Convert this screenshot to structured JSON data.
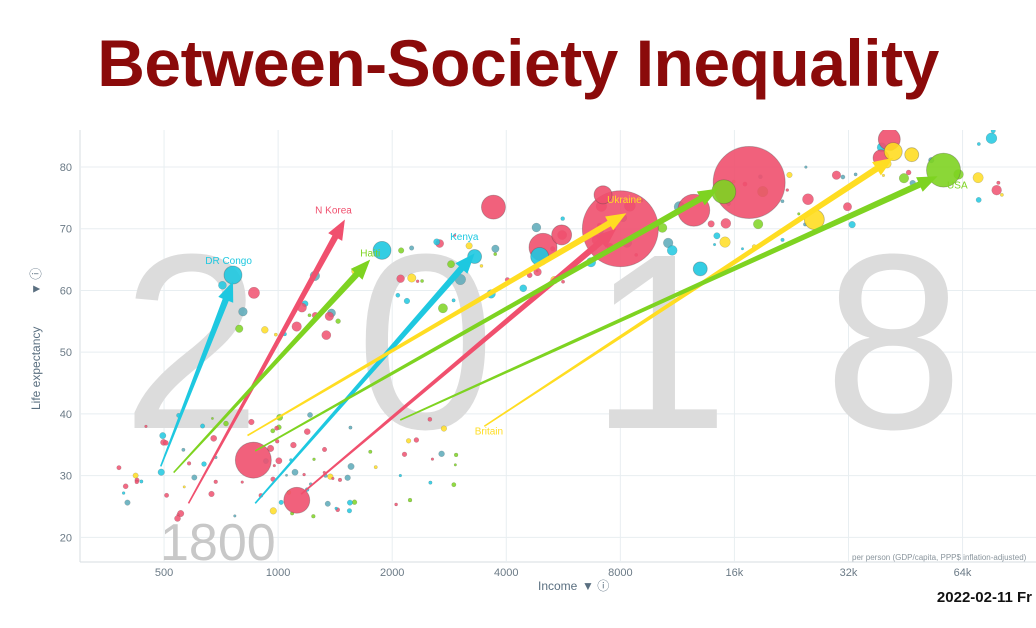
{
  "slide": {
    "title": "Between-Society Inequality",
    "date_text": "2022-02-11 Fr"
  },
  "chart_data": {
    "type": "scatter",
    "xlabel": "Income",
    "ylabel": "Life expectancy",
    "x_scale": "log",
    "x_ticks": [
      500,
      1000,
      2000,
      4000,
      8000,
      16000,
      32000,
      64000
    ],
    "x_tick_labels": [
      "500",
      "1000",
      "2000",
      "4000",
      "8000",
      "16k",
      "32k",
      "64k"
    ],
    "xlim": [
      300,
      100000
    ],
    "y_ticks": [
      20,
      30,
      40,
      50,
      60,
      70,
      80
    ],
    "ylim": [
      16,
      86
    ],
    "grid": true,
    "big_year": "2018",
    "start_year": "1800",
    "caption": "per person (GDP/capita, PPP$ inflation-adjusted)",
    "arrow_colors": {
      "pink": "#f0506e",
      "cyan": "#1ec8e0",
      "green": "#7ed321",
      "yellow": "#ffdd22"
    },
    "arrows": [
      {
        "color": "cyan",
        "from": [
          490,
          31.5
        ],
        "to": [
          760,
          61.5
        ]
      },
      {
        "color": "pink",
        "from": [
          580,
          25.5
        ],
        "to": [
          1500,
          71.5
        ]
      },
      {
        "color": "green",
        "from": [
          530,
          30.5
        ],
        "to": [
          1750,
          65
        ]
      },
      {
        "color": "cyan",
        "from": [
          870,
          25.5
        ],
        "to": [
          3300,
          66
        ]
      },
      {
        "color": "pink",
        "from": [
          1150,
          27
        ],
        "to": [
          7800,
          70
        ]
      },
      {
        "color": "yellow",
        "from": [
          830,
          36.5
        ],
        "to": [
          8300,
          72.5
        ]
      },
      {
        "color": "green",
        "from": [
          870,
          34
        ],
        "to": [
          14500,
          76.5
        ]
      },
      {
        "color": "yellow",
        "from": [
          3500,
          38
        ],
        "to": [
          42000,
          81.5
        ]
      },
      {
        "color": "green",
        "from": [
          2100,
          39
        ],
        "to": [
          55000,
          78.5
        ]
      }
    ],
    "country_labels": [
      {
        "name": "DR Congo",
        "x": 740,
        "y": 64.3,
        "color": "cyan"
      },
      {
        "name": "N Korea",
        "x": 1400,
        "y": 72.5,
        "color": "pink"
      },
      {
        "name": "Haiti",
        "x": 1750,
        "y": 65.5,
        "color": "green"
      },
      {
        "name": "Kenya",
        "x": 3100,
        "y": 68.2,
        "color": "cyan"
      },
      {
        "name": "Ukraine",
        "x": 8200,
        "y": 74.2,
        "color": "yellow"
      },
      {
        "name": "Britain",
        "x": 3600,
        "y": 36.7,
        "color": "yellow"
      },
      {
        "name": "USA",
        "x": 62000,
        "y": 76.5,
        "color": "green"
      }
    ],
    "bubbles": [
      {
        "x": 760,
        "y": 62.5,
        "r": 9,
        "color": "cyan"
      },
      {
        "x": 1880,
        "y": 66.5,
        "r": 9,
        "color": "cyan"
      },
      {
        "x": 3300,
        "y": 65.5,
        "r": 7,
        "color": "cyan"
      },
      {
        "x": 8000,
        "y": 70,
        "r": 38,
        "color": "pink"
      },
      {
        "x": 17500,
        "y": 77.5,
        "r": 36,
        "color": "pink"
      },
      {
        "x": 3700,
        "y": 73.5,
        "r": 12,
        "color": "pink"
      },
      {
        "x": 5000,
        "y": 67,
        "r": 14,
        "color": "pink"
      },
      {
        "x": 12500,
        "y": 73,
        "r": 16,
        "color": "pink"
      },
      {
        "x": 860,
        "y": 32.5,
        "r": 18,
        "color": "pink"
      },
      {
        "x": 1120,
        "y": 26,
        "r": 13,
        "color": "pink"
      },
      {
        "x": 41000,
        "y": 84.5,
        "r": 11,
        "color": "pink"
      },
      {
        "x": 39000,
        "y": 81.5,
        "r": 8,
        "color": "pink"
      },
      {
        "x": 15000,
        "y": 76,
        "r": 12,
        "color": "green"
      },
      {
        "x": 57000,
        "y": 79.5,
        "r": 17,
        "color": "green"
      },
      {
        "x": 26000,
        "y": 71.5,
        "r": 10,
        "color": "yellow"
      },
      {
        "x": 42000,
        "y": 82.5,
        "r": 9,
        "color": "yellow"
      },
      {
        "x": 47000,
        "y": 82,
        "r": 7,
        "color": "yellow"
      },
      {
        "x": 13000,
        "y": 63.5,
        "r": 7,
        "color": "cyan"
      },
      {
        "x": 4900,
        "y": 65.5,
        "r": 9,
        "color": "cyan"
      },
      {
        "x": 7200,
        "y": 75.5,
        "r": 9,
        "color": "pink"
      },
      {
        "x": 5600,
        "y": 69,
        "r": 10,
        "color": "pink"
      }
    ]
  }
}
